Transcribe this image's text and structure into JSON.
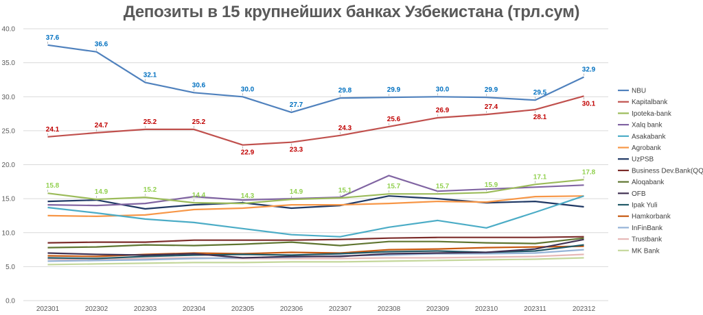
{
  "chart_data": {
    "type": "line",
    "title": "Депозиты в 15 крупнейших банках Узбекистана (трл.сум)",
    "xlabel": "",
    "ylabel": "",
    "ylim": [
      0,
      40
    ],
    "yticks": [
      "0.0",
      "5.0",
      "10.0",
      "15.0",
      "20.0",
      "25.0",
      "30.0",
      "35.0",
      "40.0"
    ],
    "categories": [
      "202301",
      "202302",
      "202303",
      "202304",
      "202305",
      "202306",
      "202307",
      "202308",
      "202309",
      "202310",
      "202311",
      "202312"
    ],
    "legend_position": "right",
    "series": [
      {
        "name": "NBU",
        "color": "#4f81bd",
        "label_color": "#0070c0",
        "show_labels": true,
        "label_pos": "above",
        "values": [
          37.6,
          36.6,
          32.1,
          30.6,
          30.0,
          27.7,
          29.8,
          29.9,
          30.0,
          29.9,
          29.5,
          32.9
        ],
        "labels": [
          "37.6",
          "36.6",
          "32.1",
          "30.6",
          "30.0",
          "27.7",
          "29.8",
          "29.9",
          "30.0",
          "29.9",
          "29.5",
          "32.9"
        ]
      },
      {
        "name": "Kapitalbank",
        "color": "#c0504d",
        "label_color": "#c00000",
        "show_labels": true,
        "label_pos": "mixed",
        "values": [
          24.1,
          24.7,
          25.2,
          25.2,
          22.9,
          23.3,
          24.3,
          25.6,
          26.9,
          27.4,
          28.1,
          30.1
        ],
        "labels": [
          "24.1",
          "24.7",
          "25.2",
          "25.2",
          "22.9",
          "23.3",
          "24.3",
          "25.6",
          "26.9",
          "27.4",
          "28.1",
          "30.1"
        ]
      },
      {
        "name": "Ipoteka-bank",
        "color": "#9bbb59",
        "label_color": "#92d050",
        "show_labels": true,
        "label_pos": "above",
        "values": [
          15.8,
          14.9,
          15.2,
          14.4,
          14.3,
          14.9,
          15.1,
          15.7,
          15.7,
          15.9,
          17.1,
          17.8
        ],
        "labels": [
          "15.8",
          "14.9",
          "15.2",
          "14.4",
          "14.3",
          "14.9",
          "15.1",
          "15.7",
          "15.7",
          "15.9",
          "17.1",
          "17.8"
        ]
      },
      {
        "name": "Xalq bank",
        "color": "#8064a2",
        "show_labels": false,
        "values": [
          14.1,
          14.0,
          14.3,
          15.3,
          14.8,
          15.0,
          15.2,
          18.4,
          16.1,
          16.4,
          16.7,
          17.0
        ]
      },
      {
        "name": "Asakabank",
        "color": "#4bacc6",
        "show_labels": false,
        "values": [
          13.7,
          12.9,
          12.0,
          11.5,
          10.6,
          9.7,
          9.4,
          10.8,
          11.8,
          10.7,
          13.0,
          15.4
        ]
      },
      {
        "name": "Agrobank",
        "color": "#f79646",
        "show_labels": false,
        "values": [
          12.5,
          12.4,
          12.6,
          13.4,
          13.6,
          14.1,
          14.1,
          14.3,
          14.6,
          14.5,
          15.3,
          15.4
        ]
      },
      {
        "name": "UzPSB",
        "color": "#1f3864",
        "show_labels": false,
        "values": [
          14.6,
          14.8,
          13.5,
          14.1,
          14.4,
          13.6,
          14.0,
          15.4,
          15.0,
          14.4,
          14.6,
          13.8
        ]
      },
      {
        "name": "Business Dev.Bank(QQB)",
        "color": "#7b2b29",
        "show_labels": false,
        "values": [
          8.5,
          8.6,
          8.6,
          8.9,
          8.9,
          8.9,
          9.0,
          9.2,
          9.3,
          9.3,
          9.3,
          9.4
        ]
      },
      {
        "name": "Aloqabank",
        "color": "#5f7530",
        "show_labels": false,
        "values": [
          7.8,
          7.9,
          8.2,
          8.1,
          8.3,
          8.6,
          8.1,
          8.7,
          8.7,
          8.5,
          8.4,
          9.2
        ]
      },
      {
        "name": "OFB",
        "color": "#403152",
        "show_labels": false,
        "values": [
          7.0,
          6.8,
          6.7,
          6.9,
          6.3,
          6.5,
          6.5,
          6.9,
          7.0,
          7.1,
          7.6,
          9.0
        ]
      },
      {
        "name": "Ipak Yuli",
        "color": "#215967",
        "show_labels": false,
        "values": [
          6.3,
          6.2,
          6.5,
          6.7,
          6.8,
          6.7,
          6.9,
          7.2,
          7.3,
          7.1,
          7.3,
          8.2
        ]
      },
      {
        "name": "Hamkorbank",
        "color": "#c65911",
        "show_labels": false,
        "values": [
          6.6,
          6.5,
          6.8,
          7.0,
          6.9,
          7.1,
          7.0,
          7.5,
          7.6,
          7.8,
          7.9,
          8.0
        ]
      },
      {
        "name": "InFinBank",
        "color": "#95b3d7",
        "show_labels": false,
        "values": [
          5.8,
          5.9,
          6.0,
          6.2,
          6.3,
          6.4,
          6.6,
          6.7,
          6.9,
          6.9,
          7.0,
          7.5
        ]
      },
      {
        "name": "Trustbank",
        "color": "#e6b8b7",
        "show_labels": false,
        "values": [
          6.1,
          6.0,
          6.2,
          6.3,
          6.2,
          6.2,
          6.2,
          6.3,
          6.3,
          6.4,
          6.5,
          6.8
        ]
      },
      {
        "name": "MK Bank",
        "color": "#c4d79b",
        "show_labels": false,
        "values": [
          5.3,
          5.4,
          5.5,
          5.6,
          5.6,
          5.7,
          5.7,
          5.8,
          5.9,
          6.0,
          6.1,
          6.3
        ]
      }
    ]
  }
}
